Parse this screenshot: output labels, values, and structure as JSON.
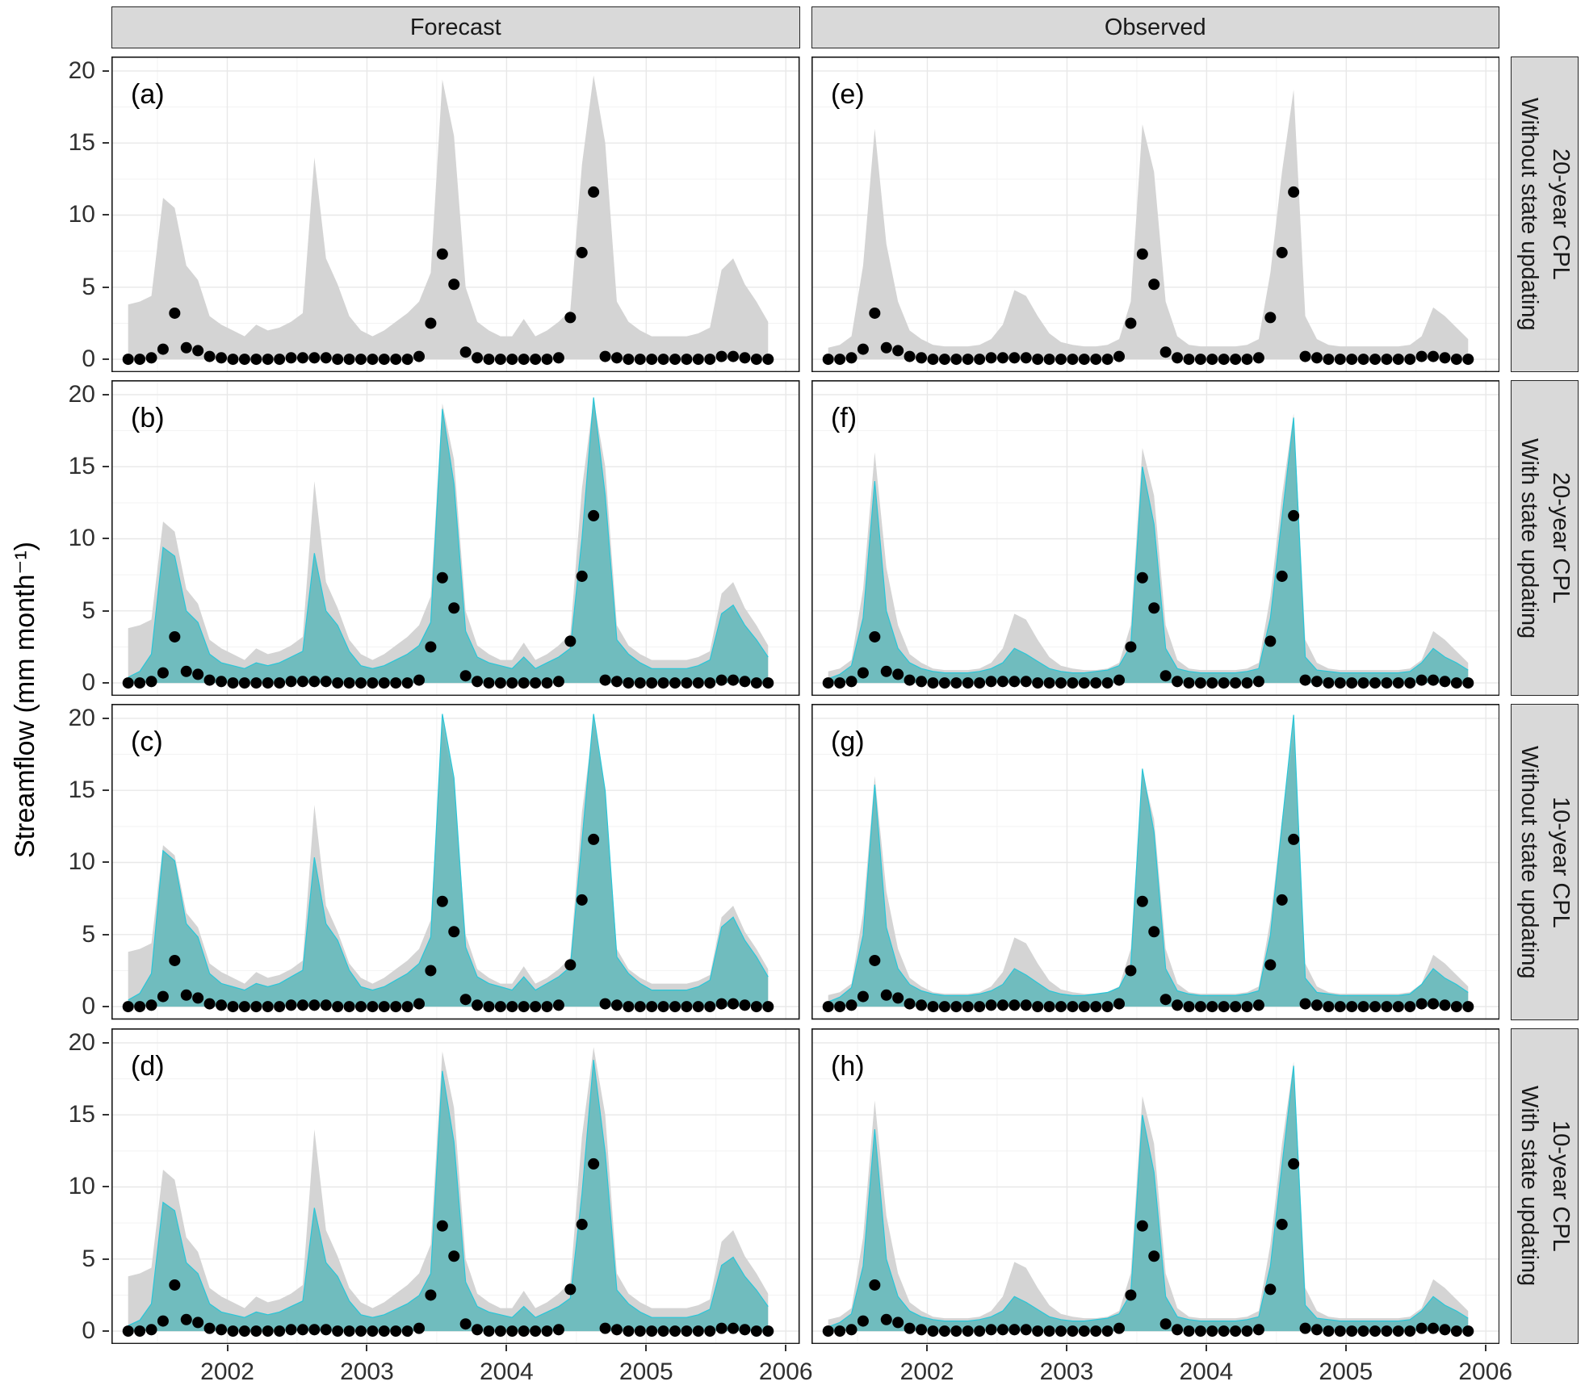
{
  "figure": {
    "col_strips": [
      "Forecast",
      "Observed"
    ],
    "row_strips": [
      "Without state updating\n20-year CPL",
      "With state updating\n20-year CPL",
      "Without state updating\n10-year CPL",
      "With state updating\n10-year CPL"
    ],
    "y_axis_label": "Streamflow (mm month⁻¹)"
  },
  "chart_data": {
    "type": "area",
    "description": "Faceted streamflow forecast/observed ribbons with monthly observation points",
    "x_start": 2001.29,
    "x_step_years": 0.0833333,
    "x_domain": [
      2001.17,
      2006.1
    ],
    "y_domain": [
      0,
      20
    ],
    "x_ticks": [
      2002,
      2003,
      2004,
      2005,
      2006
    ],
    "y_ticks": [
      0,
      5,
      10,
      15,
      20
    ],
    "band_lower": 0,
    "observations": [
      0,
      0,
      0.1,
      0.7,
      3.2,
      0.8,
      0.6,
      0.2,
      0.1,
      0,
      0,
      0,
      0,
      0,
      0.1,
      0.1,
      0.1,
      0.1,
      0,
      0,
      0,
      0,
      0,
      0,
      0,
      0.2,
      2.5,
      7.3,
      5.2,
      0.5,
      0.1,
      0,
      0,
      0,
      0,
      0,
      0,
      0.1,
      2.9,
      7.4,
      11.6,
      0.2,
      0.1,
      0,
      0,
      0,
      0,
      0,
      0,
      0,
      0,
      0.2,
      0.2,
      0.1,
      0,
      0
    ],
    "bands": {
      "gray_forecast": [
        3.8,
        4.0,
        4.4,
        11.2,
        10.5,
        6.5,
        5.5,
        3.0,
        2.4,
        2.0,
        1.6,
        2.4,
        2.0,
        2.2,
        2.6,
        3.2,
        14.0,
        7.0,
        5.2,
        3.0,
        2.0,
        1.6,
        2.0,
        2.6,
        3.2,
        4.0,
        6.0,
        19.4,
        15.5,
        5.0,
        2.6,
        2.0,
        1.6,
        1.6,
        2.8,
        1.6,
        2.0,
        2.6,
        3.4,
        13.5,
        19.7,
        15.0,
        4.0,
        2.6,
        2.0,
        1.6,
        1.6,
        1.6,
        1.6,
        1.8,
        2.2,
        6.2,
        7.0,
        5.2,
        4.0,
        2.6
      ],
      "gray_observed": [
        0.8,
        1.0,
        1.6,
        6.5,
        16.0,
        8.0,
        4.0,
        2.0,
        1.4,
        1.0,
        0.9,
        0.9,
        0.9,
        1.0,
        1.4,
        2.4,
        4.8,
        4.4,
        3.0,
        1.8,
        1.2,
        1.0,
        0.9,
        0.9,
        1.0,
        1.4,
        4.0,
        16.3,
        13.0,
        4.0,
        1.6,
        1.0,
        0.9,
        0.9,
        0.9,
        0.9,
        1.0,
        1.4,
        6.0,
        13.0,
        18.7,
        3.0,
        1.4,
        1.0,
        0.9,
        0.9,
        0.9,
        0.9,
        0.9,
        0.9,
        1.0,
        1.6,
        3.6,
        3.0,
        2.2,
        1.4
      ],
      "teal_forecast": [
        0.4,
        0.8,
        2.0,
        9.4,
        8.8,
        5.0,
        4.2,
        2.0,
        1.4,
        1.2,
        1.0,
        1.4,
        1.2,
        1.4,
        1.8,
        2.2,
        9.0,
        5.0,
        4.0,
        2.2,
        1.2,
        1.0,
        1.2,
        1.6,
        2.0,
        2.6,
        4.2,
        19.0,
        13.8,
        3.6,
        1.8,
        1.4,
        1.2,
        1.0,
        1.8,
        1.0,
        1.4,
        1.8,
        2.4,
        10.0,
        19.8,
        13.0,
        3.0,
        2.0,
        1.4,
        1.0,
        1.0,
        1.0,
        1.0,
        1.2,
        1.6,
        4.8,
        5.4,
        4.0,
        3.0,
        1.8
      ],
      "teal_observed": [
        0.3,
        0.6,
        1.2,
        4.5,
        14.0,
        5.0,
        2.4,
        1.4,
        1.0,
        0.8,
        0.7,
        0.7,
        0.7,
        0.8,
        1.0,
        1.4,
        2.4,
        2.0,
        1.5,
        1.0,
        0.8,
        0.7,
        0.7,
        0.8,
        0.9,
        1.2,
        2.6,
        15.0,
        11.0,
        2.4,
        1.0,
        0.8,
        0.7,
        0.7,
        0.7,
        0.7,
        0.8,
        1.0,
        4.5,
        11.5,
        18.4,
        1.8,
        0.9,
        0.8,
        0.7,
        0.7,
        0.7,
        0.7,
        0.7,
        0.7,
        0.8,
        1.4,
        2.4,
        1.8,
        1.4,
        0.9
      ]
    },
    "panels": [
      {
        "id": "a",
        "letter": "(a)",
        "col": 0,
        "row": 0,
        "gray": "gray_forecast",
        "teal": null
      },
      {
        "id": "b",
        "letter": "(b)",
        "col": 0,
        "row": 1,
        "gray": "gray_forecast",
        "teal": "teal_forecast",
        "teal_scale": 1.0
      },
      {
        "id": "c",
        "letter": "(c)",
        "col": 0,
        "row": 2,
        "gray": "gray_forecast",
        "teal": "teal_forecast",
        "teal_scale": 1.15
      },
      {
        "id": "d",
        "letter": "(d)",
        "col": 0,
        "row": 3,
        "gray": "gray_forecast",
        "teal": "teal_forecast",
        "teal_scale": 0.95
      },
      {
        "id": "e",
        "letter": "(e)",
        "col": 1,
        "row": 0,
        "gray": "gray_observed",
        "teal": null
      },
      {
        "id": "f",
        "letter": "(f)",
        "col": 1,
        "row": 1,
        "gray": "gray_observed",
        "teal": "teal_observed",
        "teal_scale": 1.0
      },
      {
        "id": "g",
        "letter": "(g)",
        "col": 1,
        "row": 2,
        "gray": "gray_observed",
        "teal": "teal_observed",
        "teal_scale": 1.1
      },
      {
        "id": "h",
        "letter": "(h)",
        "col": 1,
        "row": 3,
        "gray": "gray_observed",
        "teal": "teal_observed",
        "teal_scale": 1.0
      }
    ],
    "colors": {
      "gray_band": "#d4d4d4",
      "teal_band": "#5eb7ba",
      "teal_edge": "#29c6d8",
      "point": "#000000",
      "grid_major": "#e8e8e8",
      "grid_minor": "#f3f3f3",
      "strip_bg": "#d9d9d9",
      "border": "#1a1a1a"
    }
  }
}
